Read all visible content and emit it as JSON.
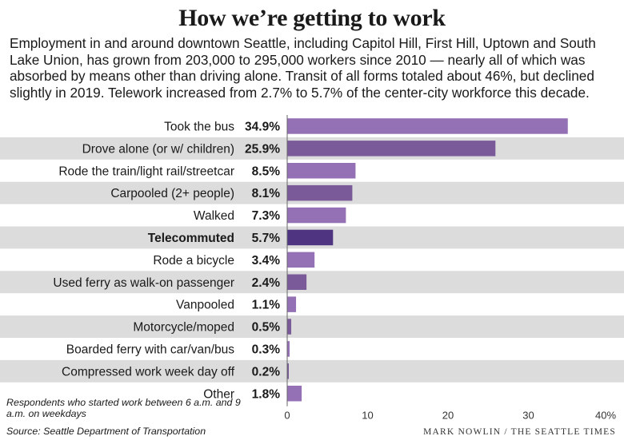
{
  "title": "How we’re getting to work",
  "subtitle": "Employment in and around downtown Seattle, including Capitol Hill, First Hill, Uptown and South Lake Union, has grown from 203,000 to 295,000 workers since 2010 — nearly all of which was absorbed by means other than driving alone. Transit of all forms totaled about 46%, but declined slightly in 2019. Telework increased from 2.7% to 5.7% of the center-city workforce this decade.",
  "note": "Respondents who started work between 6 a.m. and 9 a.m. on weekdays",
  "source": "Source: Seattle Department of Transportation",
  "credit": "MARK NOWLIN / THE SEATTLE TIMES",
  "colors": {
    "bar_light": "#9471b4",
    "bar_dark": "#7b5a99",
    "bar_highlight": "#4f3481",
    "band": "#dcdcdc"
  },
  "chart_data": {
    "type": "bar",
    "orientation": "horizontal",
    "categories": [
      "Took the bus",
      "Drove alone (or w/ children)",
      "Rode the train/light rail/streetcar",
      "Carpooled (2+ people)",
      "Walked",
      "Telecommuted",
      "Rode a bicycle",
      "Used ferry as walk-on passenger",
      "Vanpooled",
      "Motorcycle/moped",
      "Boarded ferry with car/van/bus",
      "Compressed work week day off",
      "Other"
    ],
    "values": [
      34.9,
      25.9,
      8.5,
      8.1,
      7.3,
      5.7,
      3.4,
      2.4,
      1.1,
      0.5,
      0.3,
      0.2,
      1.8
    ],
    "value_labels": [
      "34.9%",
      "25.9%",
      "8.5%",
      "8.1%",
      "7.3%",
      "5.7%",
      "3.4%",
      "2.4%",
      "1.1%",
      "0.5%",
      "0.3%",
      "0.2%",
      "1.8%"
    ],
    "highlight": "Telecommuted",
    "xlim": [
      0,
      40
    ],
    "x_ticks": [
      0,
      10,
      20,
      30,
      40
    ],
    "x_tick_labels": [
      "0",
      "10",
      "20",
      "30",
      "40%"
    ],
    "xlabel": "",
    "ylabel": "",
    "grid": false,
    "alternating_row_bands": true
  }
}
